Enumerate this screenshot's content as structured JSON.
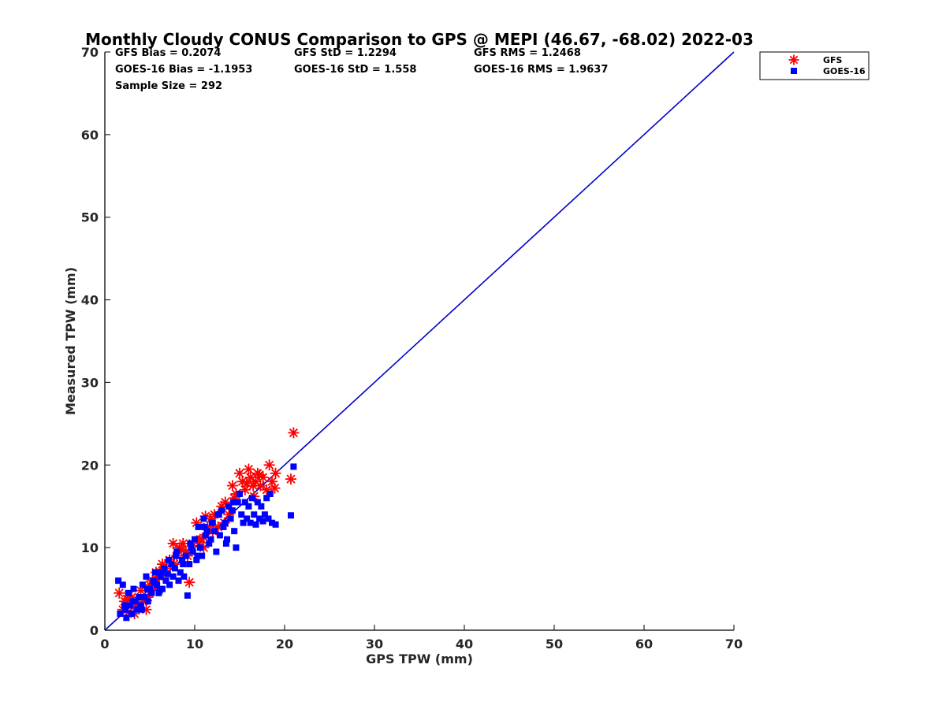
{
  "chart_data": {
    "type": "scatter",
    "title": "Monthly Cloudy CONUS Comparison to GPS @ MEPI (46.67, -68.02) 2022-03",
    "xlabel": "GPS TPW (mm)",
    "ylabel": "Measured TPW (mm)",
    "xlim": [
      0,
      70
    ],
    "ylim": [
      0,
      70
    ],
    "xticks": [
      "0",
      "10",
      "20",
      "30",
      "40",
      "50",
      "60",
      "70"
    ],
    "yticks": [
      "0",
      "10",
      "20",
      "30",
      "40",
      "50",
      "60",
      "70"
    ],
    "grid": false,
    "legend_position": "outside-top-right",
    "stats": {
      "gfs_bias": "GFS Bias = 0.2074",
      "gfs_std": "GFS StD = 1.2294",
      "gfs_rms": "GFS RMS = 1.2468",
      "goes_bias": "GOES-16 Bias = -1.1953",
      "goes_std": "GOES-16 StD = 1.558",
      "goes_rms": "GOES-16 RMS = 1.9637",
      "sample_size": "Sample Size = 292"
    },
    "reference_line": {
      "x": [
        0,
        70
      ],
      "y": [
        0,
        70
      ],
      "color": "#0000cc"
    },
    "series": [
      {
        "name": "GFS",
        "marker": "asterisk",
        "color": "#ff0000",
        "x": [
          1.6,
          2.0,
          2.2,
          2.6,
          3.0,
          3.3,
          3.6,
          4.0,
          4.3,
          4.6,
          5.0,
          5.3,
          5.7,
          6.0,
          6.4,
          6.8,
          7.2,
          7.6,
          8.0,
          8.3,
          8.7,
          9.0,
          9.4,
          9.8,
          10.2,
          10.6,
          11.0,
          11.4,
          11.8,
          12.2,
          12.6,
          13.0,
          13.4,
          13.8,
          14.2,
          14.6,
          15.0,
          15.3,
          15.6,
          16.0,
          16.2,
          16.5,
          16.8,
          17.0,
          17.3,
          17.6,
          18.0,
          18.3,
          18.6,
          18.9,
          19.0,
          20.7,
          21.0,
          2.5,
          3.2,
          4.8,
          6.2,
          7.7,
          9.2,
          10.8,
          12.0,
          13.3,
          14.4,
          15.8,
          16.6,
          17.2,
          5.5,
          8.5,
          11.2
        ],
        "y": [
          4.5,
          2.5,
          3.5,
          2.2,
          4.0,
          2.0,
          3.0,
          4.8,
          3.5,
          2.5,
          5.5,
          6.0,
          7.0,
          6.5,
          8.0,
          7.5,
          8.5,
          10.5,
          9.0,
          10.0,
          10.5,
          9.5,
          5.8,
          10.5,
          13.0,
          11.0,
          10.0,
          12.5,
          13.5,
          14.0,
          12.5,
          15.0,
          15.5,
          14.0,
          17.5,
          16.5,
          19.0,
          18.0,
          17.0,
          19.5,
          18.5,
          17.5,
          18.0,
          19.0,
          17.5,
          18.5,
          17.0,
          20.0,
          18.0,
          17.2,
          19.0,
          18.3,
          23.9,
          3.8,
          2.8,
          4.0,
          7.0,
          8.0,
          9.0,
          11.0,
          12.0,
          13.0,
          16.0,
          17.8,
          16.2,
          18.8,
          5.0,
          9.8,
          13.8
        ]
      },
      {
        "name": "GOES-16",
        "marker": "square",
        "color": "#0000ff",
        "x": [
          1.5,
          1.7,
          2.0,
          2.2,
          2.4,
          2.6,
          2.8,
          3.0,
          3.2,
          3.4,
          3.6,
          3.8,
          4.0,
          4.2,
          4.4,
          4.6,
          4.8,
          5.0,
          5.2,
          5.4,
          5.6,
          5.8,
          6.0,
          6.2,
          6.4,
          6.6,
          6.8,
          7.0,
          7.2,
          7.4,
          7.6,
          7.8,
          8.0,
          8.2,
          8.4,
          8.6,
          8.8,
          9.0,
          9.2,
          9.4,
          9.6,
          9.8,
          10.0,
          10.2,
          10.4,
          10.6,
          10.8,
          11.0,
          11.2,
          11.4,
          11.6,
          11.8,
          12.0,
          12.2,
          12.4,
          12.6,
          12.8,
          13.0,
          13.2,
          13.4,
          13.6,
          13.8,
          14.0,
          14.2,
          14.4,
          14.6,
          14.8,
          15.0,
          15.2,
          15.4,
          15.6,
          15.8,
          16.0,
          16.2,
          16.4,
          16.6,
          16.8,
          17.0,
          17.2,
          17.4,
          17.6,
          17.8,
          18.0,
          18.2,
          18.4,
          18.6,
          19.0,
          20.7,
          21.0,
          3.1,
          3.9,
          4.7,
          5.5,
          6.3,
          7.1,
          7.9,
          8.7,
          9.5,
          10.3,
          11.1,
          11.9,
          12.7,
          13.5,
          14.3,
          2.3,
          4.1,
          6.1
        ],
        "y": [
          6.0,
          2.0,
          5.5,
          3.0,
          1.5,
          4.5,
          3.0,
          2.0,
          5.0,
          3.5,
          2.5,
          4.0,
          3.0,
          5.5,
          4.0,
          6.5,
          3.5,
          5.0,
          4.5,
          6.0,
          7.0,
          5.5,
          4.5,
          6.5,
          5.0,
          7.5,
          6.0,
          6.8,
          5.5,
          8.0,
          6.5,
          7.5,
          9.5,
          6.0,
          7.0,
          8.5,
          6.5,
          9.0,
          4.2,
          8.0,
          10.0,
          9.5,
          11.0,
          8.5,
          12.5,
          10.0,
          9.0,
          13.5,
          11.5,
          12.0,
          10.5,
          11.0,
          13.0,
          12.0,
          9.5,
          14.0,
          11.5,
          14.5,
          12.5,
          13.0,
          11.0,
          15.0,
          13.5,
          14.5,
          12.0,
          10.0,
          15.5,
          16.5,
          14.0,
          13.0,
          15.5,
          13.5,
          15.0,
          13.0,
          16.0,
          14.0,
          12.8,
          15.5,
          13.5,
          15.0,
          13.2,
          14.0,
          16.0,
          13.5,
          16.5,
          13.0,
          12.8,
          13.9,
          19.8,
          3.5,
          4.0,
          5.0,
          5.8,
          7.0,
          8.5,
          9.0,
          8.0,
          10.5,
          9.0,
          12.5,
          13.0,
          14.0,
          10.5,
          15.5,
          2.5,
          2.5,
          4.8
        ]
      }
    ]
  }
}
